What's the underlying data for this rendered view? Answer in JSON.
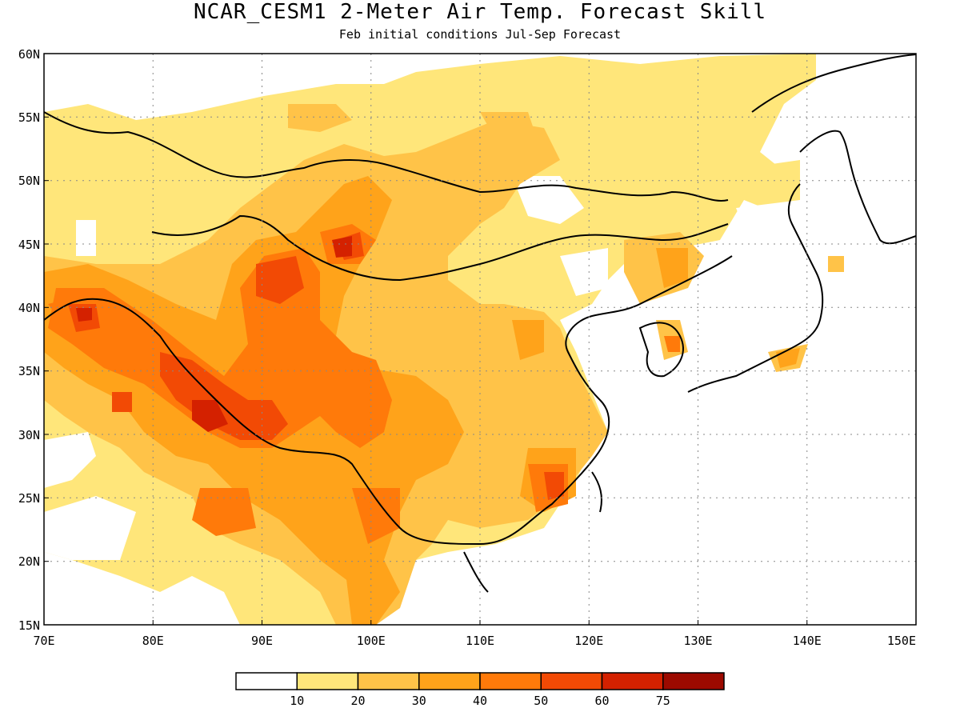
{
  "title": "NCAR_CESM1 2-Meter Air Temp. Forecast Skill",
  "subtitle": "Feb initial conditions  Jul-Sep Forecast",
  "map": {
    "lon_range": [
      70,
      150
    ],
    "lat_range": [
      15,
      60
    ],
    "lon_labels": [
      "70E",
      "80E",
      "90E",
      "100E",
      "110E",
      "120E",
      "130E",
      "140E",
      "150E"
    ],
    "lat_labels": [
      "60N",
      "55N",
      "50N",
      "45N",
      "40N",
      "35N",
      "30N",
      "25N",
      "20N",
      "15N"
    ],
    "gridlines": "dotted"
  },
  "colorbar": {
    "colors": [
      "#ffffff",
      "#ffe67a",
      "#ffc348",
      "#ffa31a",
      "#ff7a0a",
      "#f24a05",
      "#d42100",
      "#9c0a00"
    ],
    "labels": [
      "10",
      "20",
      "30",
      "40",
      "50",
      "60",
      "75"
    ]
  }
}
